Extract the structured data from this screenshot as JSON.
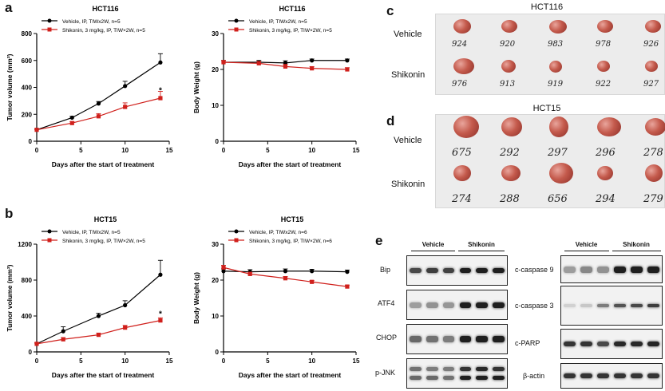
{
  "panels": {
    "a": "a",
    "b": "b",
    "c": "c",
    "d": "d",
    "e": "e"
  },
  "charts": [
    {
      "id": "a-left",
      "title": "HCT116",
      "ylabel": "Tumor volume (mm³)",
      "xlabel": "Days after the start of treatment",
      "xlim": [
        0,
        15
      ],
      "xticks": [
        0,
        5,
        10,
        15
      ],
      "ylim": [
        0,
        800
      ],
      "yticks": [
        0,
        200,
        400,
        600,
        800
      ],
      "legend": [
        "Vehicle, IP, TIWx2W, n=5",
        "Shikonin, 3 mg/kg, IP, TIW×2W, n=5"
      ],
      "star": "*",
      "star_at": [
        14,
        360
      ]
    },
    {
      "id": "a-right",
      "title": "HCT116",
      "ylabel": "Body Weight (g)",
      "xlabel": "Days after the start of treatment",
      "xlim": [
        0,
        15
      ],
      "xticks": [
        0,
        5,
        10,
        15
      ],
      "ylim": [
        0,
        30
      ],
      "yticks": [
        0,
        10,
        20,
        30
      ],
      "legend": [
        "Vehicle, IP, TIWx2W, n=5",
        "Shikonin, 3 mg/kg, IP, TIW×2W, n=5"
      ]
    },
    {
      "id": "b-left",
      "title": "HCT15",
      "ylabel": "Tumor volume (mm³)",
      "xlabel": "Days after the start of treatment",
      "xlim": [
        0,
        15
      ],
      "xticks": [
        0,
        5,
        10,
        15
      ],
      "ylim": [
        0,
        1200
      ],
      "yticks": [
        0,
        400,
        800,
        1200
      ],
      "legend": [
        "Vehicle, IP, TIWx2W, n=5",
        "Shikonin, 3 mg/kg, IP, TIW×2W, n=5"
      ],
      "star": "*",
      "star_at": [
        14,
        395
      ]
    },
    {
      "id": "b-right",
      "title": "HCT15",
      "ylabel": "Body Weight (g)",
      "xlabel": "Days after the start of treatment",
      "xlim": [
        0,
        15
      ],
      "xticks": [
        0,
        5,
        10,
        15
      ],
      "ylim": [
        0,
        30
      ],
      "yticks": [
        0,
        10,
        20,
        30
      ],
      "legend": [
        "Vehicle, IP, TIWx2W, n=6",
        "Shikonin, 3 mg/kg, IP, TIW×2W, n=6"
      ]
    }
  ],
  "chart_data": [
    {
      "type": "line",
      "title": "HCT116",
      "xlabel": "Days after the start of treatment",
      "ylabel": "Tumor volume (mm³)",
      "xlim": [
        0,
        15
      ],
      "ylim": [
        0,
        800
      ],
      "series": [
        {
          "name": "Vehicle, IP, TIWx2W, n=5",
          "color": "#000000",
          "marker": "circle",
          "x": [
            0,
            4,
            7,
            10,
            14
          ],
          "y": [
            85,
            175,
            280,
            410,
            585
          ],
          "err": [
            5,
            10,
            15,
            35,
            65
          ]
        },
        {
          "name": "Shikonin, 3 mg/kg, IP, TIW×2W, n=5",
          "color": "#d0201c",
          "marker": "square",
          "x": [
            0,
            4,
            7,
            10,
            14
          ],
          "y": [
            85,
            135,
            185,
            255,
            320
          ],
          "err": [
            5,
            10,
            20,
            30,
            50
          ]
        }
      ]
    },
    {
      "type": "line",
      "title": "HCT116",
      "xlabel": "Days after the start of treatment",
      "ylabel": "Body Weight (g)",
      "xlim": [
        0,
        15
      ],
      "ylim": [
        0,
        30
      ],
      "series": [
        {
          "name": "Vehicle, IP, TIWx2W, n=5",
          "color": "#000000",
          "marker": "circle",
          "x": [
            0,
            4,
            7,
            10,
            14
          ],
          "y": [
            22,
            22,
            21.8,
            22.5,
            22.5
          ],
          "err": [
            0.5,
            0.5,
            0.6,
            0.4,
            0.4
          ]
        },
        {
          "name": "Shikonin, 3 mg/kg, IP, TIW×2W, n=5",
          "color": "#d0201c",
          "marker": "square",
          "x": [
            0,
            4,
            7,
            10,
            14
          ],
          "y": [
            22,
            21.7,
            20.8,
            20.3,
            20
          ],
          "err": [
            0.5,
            0.5,
            0.6,
            0.5,
            0.5
          ]
        }
      ]
    },
    {
      "type": "line",
      "title": "HCT15",
      "xlabel": "Days after the start of treatment",
      "ylabel": "Tumor volume (mm³)",
      "xlim": [
        0,
        15
      ],
      "ylim": [
        0,
        1200
      ],
      "series": [
        {
          "name": "Vehicle, IP, TIWx2W, n=5",
          "color": "#000000",
          "marker": "circle",
          "x": [
            0,
            3,
            7,
            10,
            14
          ],
          "y": [
            90,
            230,
            400,
            520,
            860
          ],
          "err": [
            10,
            50,
            30,
            50,
            160
          ]
        },
        {
          "name": "Shikonin, 3 mg/kg, IP, TIW×2W, n=5",
          "color": "#d0201c",
          "marker": "square",
          "x": [
            0,
            3,
            7,
            10,
            14
          ],
          "y": [
            90,
            140,
            190,
            270,
            350
          ],
          "err": [
            10,
            20,
            20,
            25,
            30
          ]
        }
      ]
    },
    {
      "type": "line",
      "title": "HCT15",
      "xlabel": "Days after the start of treatment",
      "ylabel": "Body Weight (g)",
      "xlim": [
        0,
        15
      ],
      "ylim": [
        0,
        30
      ],
      "series": [
        {
          "name": "Vehicle, IP, TIWx2W, n=6",
          "color": "#000000",
          "marker": "circle",
          "x": [
            0,
            3,
            7,
            10,
            14
          ],
          "y": [
            22.5,
            22.3,
            22.5,
            22.5,
            22.3
          ],
          "err": [
            0.6,
            0.6,
            0.6,
            0.5,
            0.5
          ]
        },
        {
          "name": "Shikonin, 3 mg/kg, IP, TIW×2W, n=6",
          "color": "#d0201c",
          "marker": "square",
          "x": [
            0,
            3,
            7,
            10,
            14
          ],
          "y": [
            23.5,
            21.7,
            20.5,
            19.5,
            18.2
          ],
          "err": [
            0.6,
            0.5,
            0.5,
            0.4,
            0.4
          ]
        }
      ]
    }
  ],
  "photo_c": {
    "title": "HCT116",
    "rows": [
      {
        "label": "Vehicle",
        "ids": [
          "924",
          "920",
          "983",
          "978",
          "926"
        ]
      },
      {
        "label": "Shikonin",
        "ids": [
          "976",
          "913",
          "919",
          "922",
          "927"
        ]
      }
    ]
  },
  "photo_d": {
    "title": "HCT15",
    "rows": [
      {
        "label": "Vehicle",
        "ids": [
          "675",
          "292",
          "297",
          "296",
          "278"
        ]
      },
      {
        "label": "Shikonin",
        "ids": [
          "274",
          "288",
          "656",
          "294",
          "279"
        ]
      }
    ]
  },
  "blots": {
    "group_vehicle": "Vehicle",
    "group_shikonin": "Shikonin",
    "left": [
      "Bip",
      "ATF4",
      "CHOP",
      "p-JNK"
    ],
    "right": [
      "c-caspase 9",
      "c-caspase 3",
      "c-PARP",
      "β-actin"
    ]
  }
}
